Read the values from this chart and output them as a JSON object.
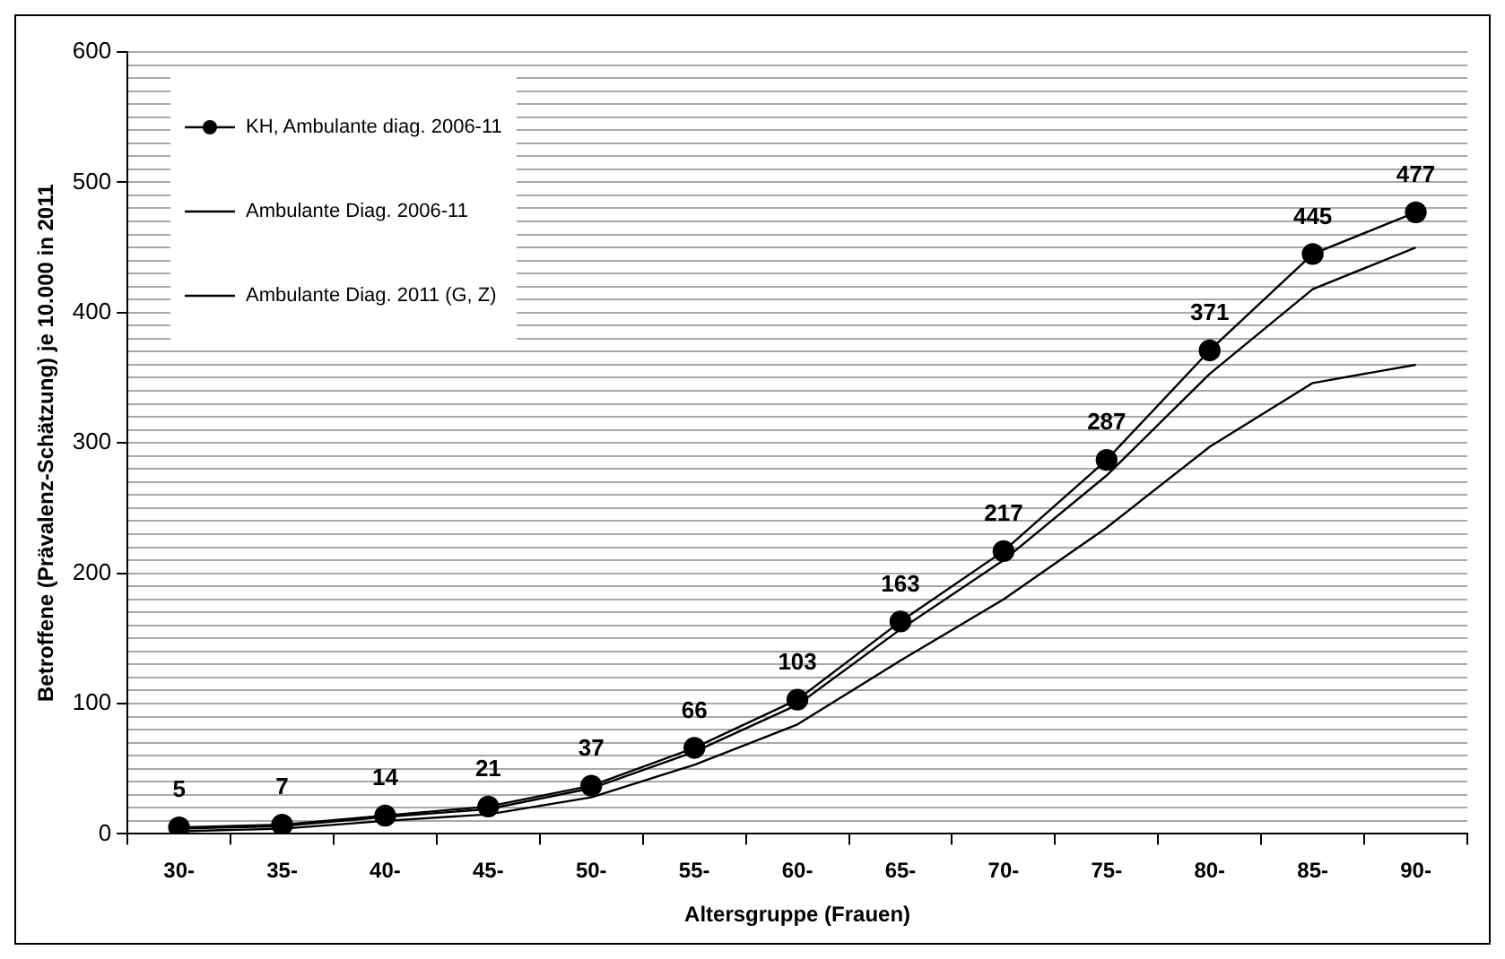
{
  "chart_data": {
    "type": "line",
    "xlabel": "Altersgruppe (Frauen)",
    "ylabel": "Betroffene (Prävalenz-Schätzung) je 10.000 in 2011",
    "categories": [
      "30-",
      "35-",
      "40-",
      "45-",
      "50-",
      "55-",
      "60-",
      "65-",
      "70-",
      "75-",
      "80-",
      "85-",
      "90-"
    ],
    "series": [
      {
        "name": "KH, Ambulante diag. 2006-11",
        "color": "#000000",
        "marker": "circle",
        "values": [
          5,
          7,
          14,
          21,
          37,
          66,
          103,
          163,
          217,
          287,
          371,
          445,
          477
        ],
        "value_labels": [
          "5",
          "7",
          "14",
          "21",
          "37",
          "66",
          "103",
          "163",
          "217",
          "287",
          "371",
          "445",
          "477"
        ]
      },
      {
        "name": "Ambulante Diag. 2006-11",
        "color": "#000000",
        "marker": "none",
        "values": [
          4,
          6,
          13,
          19,
          35,
          63,
          99,
          157,
          210,
          275,
          353,
          418,
          450
        ]
      },
      {
        "name": "Ambulante Diag. 2011 (G, Z)",
        "color": "#000000",
        "marker": "none",
        "values": [
          2,
          4,
          10,
          15,
          28,
          53,
          84,
          133,
          180,
          235,
          297,
          346,
          360
        ]
      }
    ],
    "ylim": [
      0,
      600
    ],
    "yticks": [
      0,
      {
        "value": 10,
        "label": null
      },
      {
        "value": 20,
        "label": null
      },
      {
        "value": 30,
        "label": null
      },
      {
        "value": 40,
        "label": null
      },
      {
        "value": 50,
        "label": null
      },
      {
        "value": 60,
        "label": null
      },
      {
        "value": 70,
        "label": null
      },
      {
        "value": 80,
        "label": null
      },
      {
        "value": 90,
        "label": null
      },
      100,
      {
        "value": 110,
        "label": null
      },
      {
        "value": 120,
        "label": null
      },
      {
        "value": 130,
        "label": null
      },
      {
        "value": 140,
        "label": null
      },
      {
        "value": 150,
        "label": null
      },
      {
        "value": 160,
        "label": null
      },
      {
        "value": 170,
        "label": null
      },
      {
        "value": 180,
        "label": null
      },
      {
        "value": 190,
        "label": null
      },
      200,
      {
        "value": 210,
        "label": null
      },
      {
        "value": 220,
        "label": null
      },
      {
        "value": 230,
        "label": null
      },
      {
        "value": 240,
        "label": null
      },
      {
        "value": 250,
        "label": null
      },
      {
        "value": 260,
        "label": null
      },
      {
        "value": 270,
        "label": null
      },
      {
        "value": 280,
        "label": null
      },
      {
        "value": 290,
        "label": null
      },
      300,
      {
        "value": 310,
        "label": null
      },
      {
        "value": 320,
        "label": null
      },
      {
        "value": 330,
        "label": null
      },
      {
        "value": 340,
        "label": null
      },
      {
        "value": 350,
        "label": null
      },
      {
        "value": 360,
        "label": null
      },
      {
        "value": 370,
        "label": null
      },
      {
        "value": 380,
        "label": null
      },
      {
        "value": 390,
        "label": null
      },
      400,
      {
        "value": 410,
        "label": null
      },
      {
        "value": 420,
        "label": null
      },
      {
        "value": 430,
        "label": null
      },
      {
        "value": 440,
        "label": null
      },
      {
        "value": 450,
        "label": null
      },
      {
        "value": 460,
        "label": null
      },
      {
        "value": 470,
        "label": null
      },
      {
        "value": 480,
        "label": null
      },
      {
        "value": 490,
        "label": null
      },
      500,
      {
        "value": 510,
        "label": null
      },
      {
        "value": 520,
        "label": null
      },
      {
        "value": 530,
        "label": null
      },
      {
        "value": 540,
        "label": null
      },
      {
        "value": 550,
        "label": null
      },
      {
        "value": 560,
        "label": null
      },
      {
        "value": 570,
        "label": null
      },
      {
        "value": 580,
        "label": null
      },
      {
        "value": 590,
        "label": null
      },
      600
    ],
    "grid": "y",
    "legend": "top left",
    "line_style": "solid"
  }
}
